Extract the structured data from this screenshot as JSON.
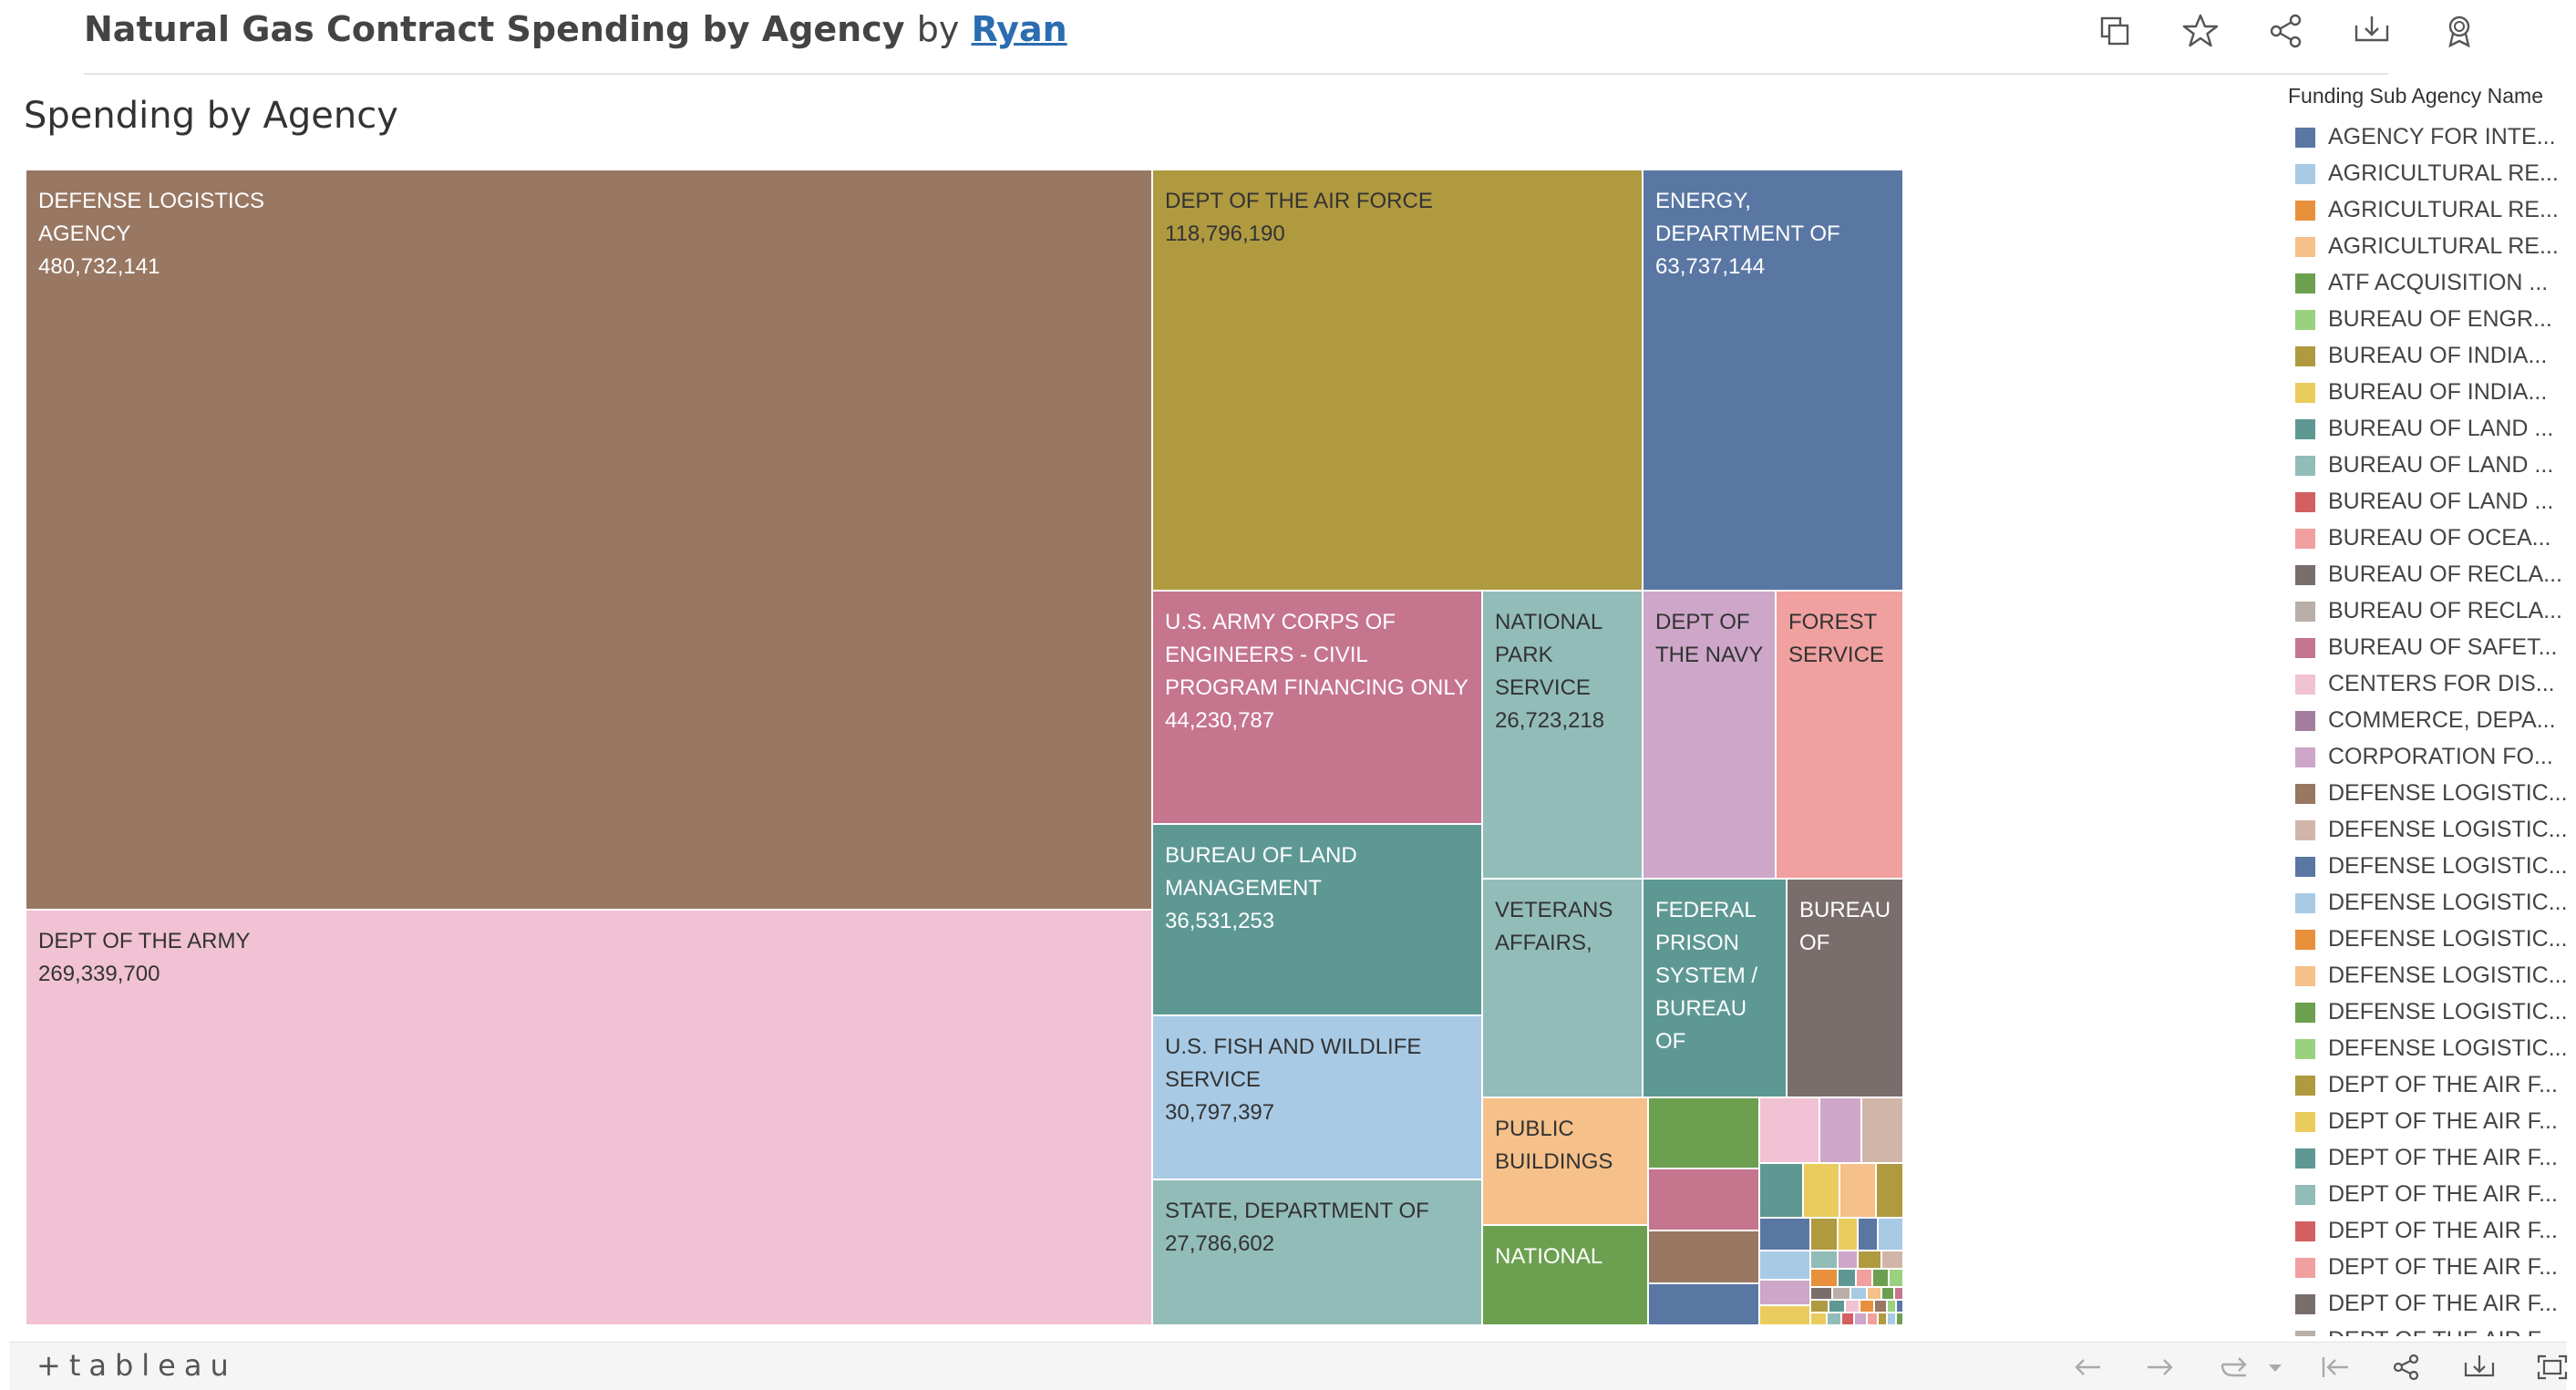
{
  "header": {
    "title": "Natural Gas Contract Spending by Agency",
    "by": "by",
    "author": "Ryan",
    "icons": [
      "copy-icon",
      "star-icon",
      "share-icon",
      "download-icon",
      "badge-icon"
    ]
  },
  "sheet_title": "Spending by Agency",
  "chart_data": {
    "type": "treemap",
    "title": "Spending by Agency",
    "tiles": [
      {
        "label": "DEFENSE LOGISTICS AGENCY",
        "value_label": "480,732,141",
        "value": 480732141,
        "color": "#987763"
      },
      {
        "label": "DEPT OF THE ARMY",
        "value_label": "269,339,700",
        "value": 269339700,
        "color": "#f1c2d3"
      },
      {
        "label": "DEPT OF THE AIR FORCE",
        "value_label": "118,796,190",
        "value": 118796190,
        "color": "#b09a40"
      },
      {
        "label": "ENERGY, DEPARTMENT OF",
        "value_label": "63,737,144",
        "value": 63737144,
        "color": "#5a77a4"
      },
      {
        "label": "U.S. ARMY CORPS OF ENGINEERS - CIVIL PROGRAM FINANCING ONLY",
        "value_label": "44,230,787",
        "value": 44230787,
        "color": "#c6758e"
      },
      {
        "label": "NATIONAL PARK SERVICE",
        "value_label": "26,723,218",
        "value": 26723218,
        "color": "#92bcb8"
      },
      {
        "label": "DEPT OF THE NAVY",
        "value_label": "",
        "color": "#cda6c9"
      },
      {
        "label": "FOREST SERVICE",
        "value_label": "",
        "color": "#f0a09f"
      },
      {
        "label": "BUREAU OF LAND MANAGEMENT",
        "value_label": "36,531,253",
        "value": 36531253,
        "color": "#5e9893"
      },
      {
        "label": "VETERANS AFFAIRS,",
        "value_label": "",
        "color": "#92bcb8"
      },
      {
        "label": "FEDERAL PRISON SYSTEM / BUREAU OF",
        "value_label": "",
        "color": "#5e9893"
      },
      {
        "label": "BUREAU OF",
        "value_label": "",
        "color": "#7a6e6c"
      },
      {
        "label": "U.S. FISH AND WILDLIFE SERVICE",
        "value_label": "30,797,397",
        "value": 30797397,
        "color": "#a8cae5"
      },
      {
        "label": "PUBLIC BUILDINGS SERVICE",
        "value_label": "",
        "color": "#f5c08a"
      },
      {
        "label": "STATE, DEPARTMENT OF",
        "value_label": "27,786,602",
        "value": 27786602,
        "color": "#92bcb8"
      },
      {
        "label": "NATIONAL",
        "value_label": "",
        "color": "#6ca050"
      }
    ],
    "small_tile_colors": [
      "#6ca050",
      "#c6758e",
      "#987763",
      "#5a77a4",
      "#f1c2d3",
      "#cda6c9",
      "#d2b5a9",
      "#5e9893",
      "#e9cc5d",
      "#f5c08a",
      "#b09a40",
      "#5a77a4",
      "#b09a40",
      "#e9cc5d",
      "#5a77a4",
      "#a8cae5",
      "#a8cae5",
      "#92bcb8",
      "#cda6c9",
      "#b09a40",
      "#d2b5a9",
      "#e8903c",
      "#5e9893",
      "#f0a09f",
      "#6ca050",
      "#9ad17f",
      "#cda6c9",
      "#e9cc5d",
      "#7a6e6c",
      "#b9aea8",
      "#a8cae5",
      "#f5c08a",
      "#6ca050",
      "#c6758e",
      "#b09a40",
      "#5e9893",
      "#f1c2d3",
      "#e8903c",
      "#987763",
      "#9ad17f",
      "#5a77a4",
      "#e9cc5d",
      "#92bcb8",
      "#d36060",
      "#cda6c9",
      "#f0a09f",
      "#b09a40",
      "#a8cae5",
      "#6ca050",
      "#f5c08a"
    ]
  },
  "legend": {
    "title": "Funding Sub Agency Name",
    "items": [
      {
        "label": "AGENCY FOR INTE...",
        "color": "#5a77a4"
      },
      {
        "label": "AGRICULTURAL RE...",
        "color": "#a8cae5"
      },
      {
        "label": "AGRICULTURAL RE...",
        "color": "#e8903c"
      },
      {
        "label": "AGRICULTURAL RE...",
        "color": "#f5c08a"
      },
      {
        "label": "ATF ACQUISITION ...",
        "color": "#6ca050"
      },
      {
        "label": "BUREAU OF ENGR...",
        "color": "#9ad17f"
      },
      {
        "label": "BUREAU OF INDIA...",
        "color": "#b09a40"
      },
      {
        "label": "BUREAU OF INDIA...",
        "color": "#e9cc5d"
      },
      {
        "label": "BUREAU OF LAND ...",
        "color": "#5e9893"
      },
      {
        "label": "BUREAU OF LAND ...",
        "color": "#92bcb8"
      },
      {
        "label": "BUREAU OF LAND ...",
        "color": "#d36060"
      },
      {
        "label": "BUREAU OF OCEA...",
        "color": "#f0a09f"
      },
      {
        "label": "BUREAU OF RECLA...",
        "color": "#7a6e6c"
      },
      {
        "label": "BUREAU OF RECLA...",
        "color": "#b9aea8"
      },
      {
        "label": "BUREAU OF SAFET...",
        "color": "#c6758e"
      },
      {
        "label": "CENTERS FOR DIS...",
        "color": "#f1c2d3"
      },
      {
        "label": "COMMERCE, DEPA...",
        "color": "#a57e9f"
      },
      {
        "label": "CORPORATION FO...",
        "color": "#cda6c9"
      },
      {
        "label": "DEFENSE LOGISTIC...",
        "color": "#987763"
      },
      {
        "label": "DEFENSE LOGISTIC...",
        "color": "#d2b5a9"
      },
      {
        "label": "DEFENSE LOGISTIC...",
        "color": "#5a77a4"
      },
      {
        "label": "DEFENSE LOGISTIC...",
        "color": "#a8cae5"
      },
      {
        "label": "DEFENSE LOGISTIC...",
        "color": "#e8903c"
      },
      {
        "label": "DEFENSE LOGISTIC...",
        "color": "#f5c08a"
      },
      {
        "label": "DEFENSE LOGISTIC...",
        "color": "#6ca050"
      },
      {
        "label": "DEFENSE LOGISTIC...",
        "color": "#9ad17f"
      },
      {
        "label": "DEPT OF THE AIR F...",
        "color": "#b09a40"
      },
      {
        "label": "DEPT OF THE AIR F...",
        "color": "#e9cc5d"
      },
      {
        "label": "DEPT OF THE AIR F...",
        "color": "#5e9893"
      },
      {
        "label": "DEPT OF THE AIR F...",
        "color": "#92bcb8"
      },
      {
        "label": "DEPT OF THE AIR F...",
        "color": "#d36060"
      },
      {
        "label": "DEPT OF THE AIR F...",
        "color": "#f0a09f"
      },
      {
        "label": "DEPT OF THE AIR F...",
        "color": "#7a6e6c"
      },
      {
        "label": "DEPT OF THE AIR F...",
        "color": "#b9aea8"
      }
    ]
  },
  "footer": {
    "logo": "+tableau",
    "icons": [
      "undo-icon",
      "redo-icon",
      "revert-icon",
      "dropdown-icon",
      "reset-icon",
      "share-icon",
      "download-icon",
      "fullscreen-icon"
    ]
  }
}
